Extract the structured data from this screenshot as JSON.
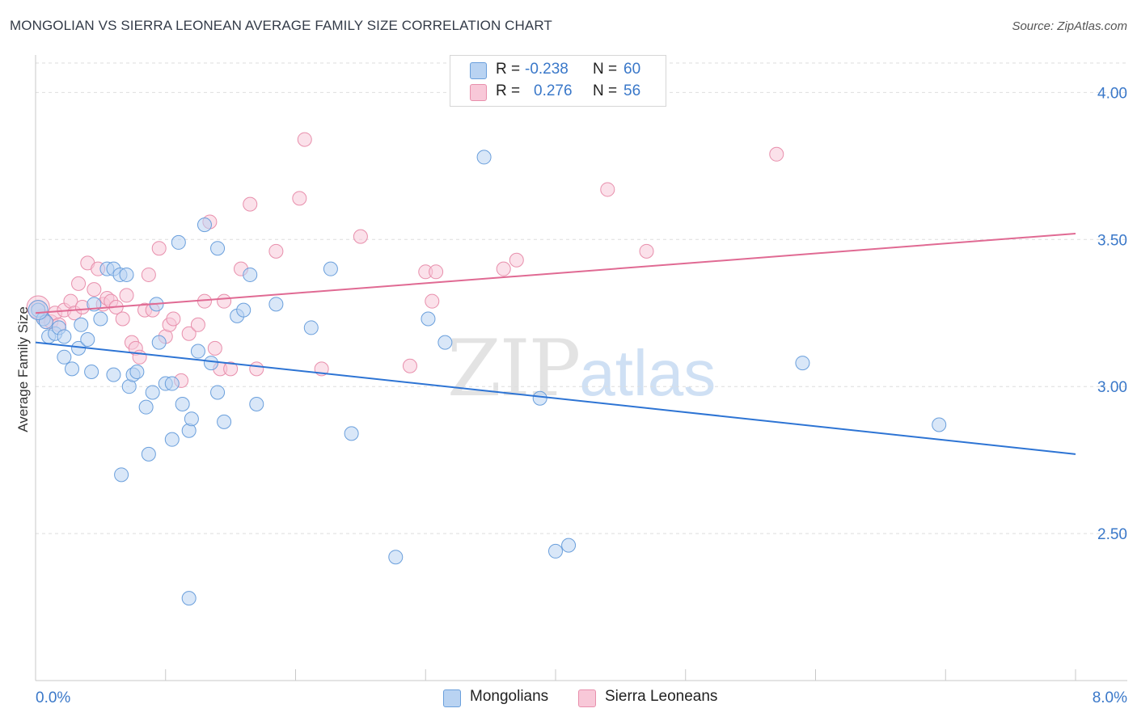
{
  "header": {
    "title": "MONGOLIAN VS SIERRA LEONEAN AVERAGE FAMILY SIZE CORRELATION CHART",
    "source": "Source: ZipAtlas.com"
  },
  "legend": {
    "rows": [
      {
        "r_label": "R =",
        "r_value": "-0.238",
        "n_label": "N =",
        "n_value": "60"
      },
      {
        "r_label": "R =",
        "r_value": "0.276",
        "n_label": "N =",
        "n_value": "56"
      }
    ]
  },
  "bottom_legend": {
    "mongolians": "Mongolians",
    "sierra_leoneans": "Sierra Leoneans"
  },
  "watermark": {
    "zip": "ZIP",
    "atlas": "atlas"
  },
  "colors": {
    "blue_fill": "#b9d3f2",
    "blue_stroke": "#6a9fdc",
    "blue_line": "#2d74d4",
    "pink_fill": "#f8c8d8",
    "pink_stroke": "#e88fac",
    "pink_line": "#e06a93",
    "tick_label": "#3a78c9",
    "grid": "#dedede"
  },
  "chart_data": {
    "type": "scatter",
    "title": "MONGOLIAN VS SIERRA LEONEAN AVERAGE FAMILY SIZE CORRELATION CHART",
    "xlabel": "",
    "ylabel": "Average Family Size",
    "xlim": [
      0.0,
      8.0
    ],
    "ylim": [
      2.0,
      4.1
    ],
    "x_tick_labels": [
      "0.0%",
      "8.0%"
    ],
    "y_ticks": [
      2.5,
      3.0,
      3.5,
      4.0
    ],
    "y_tick_labels": [
      "2.50",
      "3.00",
      "3.50",
      "4.00"
    ],
    "grid": true,
    "legend_position": "top-center",
    "series": [
      {
        "name": "Mongolians",
        "r": -0.238,
        "n": 60,
        "trend": {
          "x": [
            0.0,
            8.0
          ],
          "y": [
            3.15,
            2.77
          ]
        },
        "points": [
          [
            0.02,
            3.26
          ],
          [
            0.06,
            3.23
          ],
          [
            0.1,
            3.17
          ],
          [
            0.15,
            3.18
          ],
          [
            0.18,
            3.2
          ],
          [
            0.22,
            3.17
          ],
          [
            0.22,
            3.1
          ],
          [
            0.28,
            3.06
          ],
          [
            0.33,
            3.13
          ],
          [
            0.35,
            3.21
          ],
          [
            0.4,
            3.16
          ],
          [
            0.43,
            3.05
          ],
          [
            0.45,
            3.28
          ],
          [
            0.5,
            3.23
          ],
          [
            0.55,
            3.4
          ],
          [
            0.6,
            3.4
          ],
          [
            0.6,
            3.04
          ],
          [
            0.65,
            3.38
          ],
          [
            0.7,
            3.38
          ],
          [
            0.72,
            3.0
          ],
          [
            0.75,
            3.04
          ],
          [
            0.78,
            3.05
          ],
          [
            0.85,
            2.93
          ],
          [
            0.87,
            2.77
          ],
          [
            0.9,
            2.98
          ],
          [
            0.93,
            3.28
          ],
          [
            0.95,
            3.15
          ],
          [
            1.0,
            3.01
          ],
          [
            1.05,
            3.01
          ],
          [
            1.05,
            2.82
          ],
          [
            1.1,
            3.49
          ],
          [
            1.13,
            2.94
          ],
          [
            1.18,
            2.85
          ],
          [
            1.2,
            2.89
          ],
          [
            1.25,
            3.12
          ],
          [
            1.3,
            3.55
          ],
          [
            1.35,
            3.08
          ],
          [
            1.4,
            3.47
          ],
          [
            1.4,
            2.98
          ],
          [
            1.45,
            2.88
          ],
          [
            1.55,
            3.24
          ],
          [
            1.6,
            3.26
          ],
          [
            1.65,
            3.38
          ],
          [
            1.7,
            2.94
          ],
          [
            1.85,
            3.28
          ],
          [
            2.12,
            3.2
          ],
          [
            2.27,
            3.4
          ],
          [
            2.43,
            2.84
          ],
          [
            2.77,
            2.42
          ],
          [
            3.02,
            3.23
          ],
          [
            3.15,
            3.15
          ],
          [
            3.45,
            3.78
          ],
          [
            3.88,
            2.96
          ],
          [
            4.0,
            2.44
          ],
          [
            4.1,
            2.46
          ],
          [
            5.9,
            3.08
          ],
          [
            6.95,
            2.87
          ],
          [
            0.66,
            2.7
          ],
          [
            1.18,
            2.28
          ],
          [
            0.08,
            3.22
          ]
        ]
      },
      {
        "name": "Sierra Leoneans",
        "r": 0.276,
        "n": 56,
        "trend": {
          "x": [
            0.0,
            8.0
          ],
          "y": [
            3.25,
            3.52
          ]
        },
        "points": [
          [
            0.02,
            3.27
          ],
          [
            0.05,
            3.24
          ],
          [
            0.08,
            3.22
          ],
          [
            0.12,
            3.22
          ],
          [
            0.15,
            3.25
          ],
          [
            0.18,
            3.21
          ],
          [
            0.22,
            3.26
          ],
          [
            0.27,
            3.29
          ],
          [
            0.3,
            3.25
          ],
          [
            0.33,
            3.35
          ],
          [
            0.36,
            3.27
          ],
          [
            0.4,
            3.42
          ],
          [
            0.45,
            3.33
          ],
          [
            0.48,
            3.4
          ],
          [
            0.52,
            3.28
          ],
          [
            0.55,
            3.3
          ],
          [
            0.58,
            3.29
          ],
          [
            0.62,
            3.27
          ],
          [
            0.67,
            3.23
          ],
          [
            0.7,
            3.31
          ],
          [
            0.74,
            3.15
          ],
          [
            0.77,
            3.13
          ],
          [
            0.8,
            3.1
          ],
          [
            0.84,
            3.26
          ],
          [
            0.87,
            3.38
          ],
          [
            0.9,
            3.26
          ],
          [
            0.95,
            3.47
          ],
          [
            1.0,
            3.17
          ],
          [
            1.03,
            3.21
          ],
          [
            1.06,
            3.23
          ],
          [
            1.12,
            3.02
          ],
          [
            1.18,
            3.18
          ],
          [
            1.25,
            3.21
          ],
          [
            1.3,
            3.29
          ],
          [
            1.34,
            3.56
          ],
          [
            1.38,
            3.13
          ],
          [
            1.42,
            3.06
          ],
          [
            1.45,
            3.29
          ],
          [
            1.5,
            3.06
          ],
          [
            1.58,
            3.4
          ],
          [
            1.65,
            3.62
          ],
          [
            1.7,
            3.06
          ],
          [
            1.85,
            3.46
          ],
          [
            2.03,
            3.64
          ],
          [
            2.07,
            3.84
          ],
          [
            2.2,
            3.06
          ],
          [
            2.5,
            3.51
          ],
          [
            2.88,
            3.07
          ],
          [
            3.0,
            3.39
          ],
          [
            3.08,
            3.39
          ],
          [
            3.05,
            3.29
          ],
          [
            3.6,
            3.4
          ],
          [
            3.7,
            3.43
          ],
          [
            4.4,
            3.67
          ],
          [
            4.7,
            3.46
          ],
          [
            5.7,
            3.79
          ]
        ]
      }
    ]
  }
}
